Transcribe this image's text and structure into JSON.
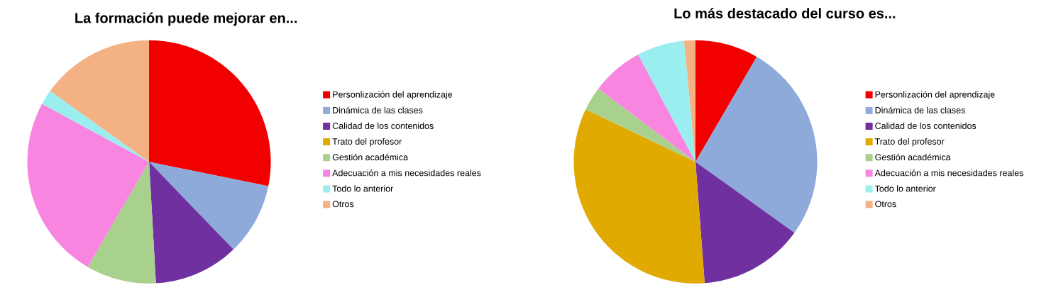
{
  "chart_data": [
    {
      "type": "pie",
      "title": "La formación puede mejorar en...",
      "categories": [
        "Personlización del aprendizaje",
        "Dinámica de las clases",
        "Calidad de los contenidos",
        "Trato del profesor",
        "Gestión académica",
        "Adecuación a mis necesidades reales",
        "Todo lo anterior",
        "Otros"
      ],
      "values": [
        28.2,
        9.6,
        11.3,
        0,
        9.3,
        24.5,
        2.0,
        15.1
      ],
      "colors": [
        "#f20000",
        "#8eaadb",
        "#7030a0",
        "#e0aa00",
        "#a9d18e",
        "#f886e0",
        "#9beef0",
        "#f4b183"
      ],
      "legend": "right"
    },
    {
      "type": "pie",
      "title": "Lo más destacado del curso es...",
      "categories": [
        "Personlización del aprendizaje",
        "Dinámica de las clases",
        "Calidad de los contenidos",
        "Trato del profesor",
        "Gestión académica",
        "Adecuación a mis necesidades reales",
        "Todo lo anterior",
        "Otros"
      ],
      "values": [
        8.4,
        26.5,
        13.9,
        33.3,
        3.2,
        6.9,
        6.3,
        1.5
      ],
      "colors": [
        "#f20000",
        "#8eaadb",
        "#7030a0",
        "#e0aa00",
        "#a9d18e",
        "#f886e0",
        "#9beef0",
        "#f4b183"
      ],
      "legend": "right"
    }
  ]
}
